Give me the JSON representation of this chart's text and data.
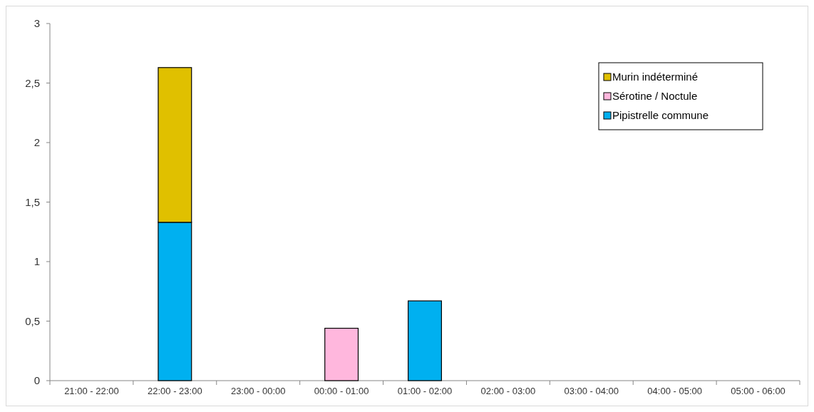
{
  "chart_data": {
    "type": "bar",
    "stacked": true,
    "categories": [
      "21:00 - 22:00",
      "22:00 - 23:00",
      "23:00 - 00:00",
      "00:00 - 01:00",
      "01:00 - 02:00",
      "02:00 - 03:00",
      "03:00 - 04:00",
      "04:00 - 05:00",
      "05:00 - 06:00"
    ],
    "series": [
      {
        "name": "Pipistrelle commune",
        "color": "#00b0f0",
        "values": [
          null,
          1.33,
          null,
          null,
          0.67,
          null,
          null,
          null,
          null
        ]
      },
      {
        "name": "Sérotine / Noctule",
        "color": "#ffb7dd",
        "values": [
          null,
          null,
          null,
          0.44,
          null,
          null,
          null,
          null,
          null
        ]
      },
      {
        "name": "Murin indéterminé",
        "color": "#e0c000",
        "values": [
          null,
          1.3,
          null,
          null,
          null,
          null,
          null,
          null,
          null
        ]
      }
    ],
    "ylim": [
      0,
      3
    ],
    "yticks": [
      0,
      {
        "value": 0.5,
        "label": "0,5"
      },
      1,
      {
        "value": 1.5,
        "label": "1,5"
      },
      2,
      {
        "value": 2.5,
        "label": "2,5"
      },
      3
    ],
    "grid": false,
    "legend": "top right"
  }
}
